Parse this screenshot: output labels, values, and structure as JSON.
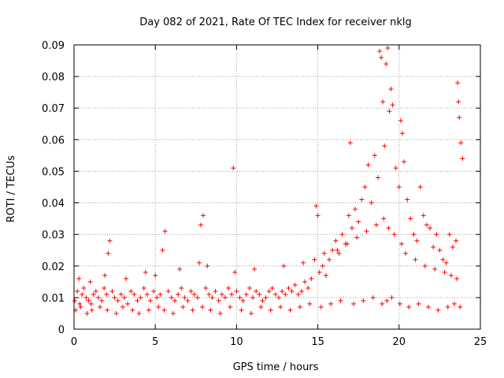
{
  "chart_data": {
    "type": "scatter",
    "title": "Day 082 of 2021, Rate Of TEC Index for receiver nklg",
    "xlabel": "GPS time / hours",
    "ylabel": "ROTI / TECUs",
    "xlim": [
      0,
      25
    ],
    "ylim": [
      0,
      0.09
    ],
    "x_ticks": [
      0,
      5,
      10,
      15,
      20,
      25
    ],
    "x_tick_labels": [
      "0",
      "5",
      "10",
      "15",
      "20",
      "25"
    ],
    "y_ticks": [
      0,
      0.01,
      0.02,
      0.03,
      0.04,
      0.05,
      0.06,
      0.07,
      0.08,
      0.09
    ],
    "y_tick_labels": [
      "0",
      "0.01",
      "0.02",
      "0.03",
      "0.04",
      "0.05",
      "0.06",
      "0.07",
      "0.08",
      "0.09"
    ],
    "grid": true,
    "marker": "plus",
    "series": [
      {
        "name": "ROTI",
        "color": "#ff0000",
        "x": [
          0.05,
          0.2,
          0.35,
          0.5,
          0.6,
          0.75,
          0.9,
          1.05,
          1.2,
          1.35,
          1.5,
          1.7,
          1.85,
          2.0,
          2.1,
          2.2,
          2.35,
          2.5,
          2.7,
          2.9,
          3.1,
          3.3,
          3.5,
          3.7,
          3.9,
          4.1,
          4.3,
          4.5,
          4.7,
          4.9,
          5.1,
          5.3,
          5.45,
          5.6,
          5.8,
          6.0,
          6.2,
          6.4,
          6.6,
          6.8,
          7.0,
          7.2,
          7.4,
          7.6,
          7.8,
          7.95,
          8.1,
          8.3,
          8.5,
          8.7,
          8.9,
          9.1,
          9.3,
          9.5,
          9.7,
          9.8,
          10.0,
          10.2,
          10.4,
          10.6,
          10.8,
          11.0,
          11.2,
          11.4,
          11.6,
          11.8,
          12.0,
          12.2,
          12.4,
          12.6,
          12.8,
          13.0,
          13.2,
          13.4,
          13.6,
          13.8,
          14.0,
          14.2,
          14.4,
          14.6,
          14.8,
          14.9,
          15.0,
          15.1,
          15.3,
          15.5,
          15.7,
          15.9,
          16.1,
          16.3,
          16.5,
          16.7,
          16.9,
          17.0,
          17.1,
          17.3,
          17.5,
          17.7,
          17.9,
          18.1,
          18.3,
          18.5,
          18.7,
          18.8,
          18.9,
          19.0,
          19.1,
          19.2,
          19.3,
          19.4,
          19.5,
          19.6,
          19.8,
          20.0,
          20.1,
          20.2,
          20.3,
          20.5,
          20.7,
          20.9,
          21.1,
          21.3,
          21.5,
          21.7,
          21.9,
          22.1,
          22.3,
          22.5,
          22.7,
          22.9,
          23.1,
          23.3,
          23.5,
          23.6,
          23.65,
          23.7,
          23.8,
          23.9,
          0.1,
          0.4,
          0.8,
          1.1,
          1.6,
          2.05,
          2.6,
          3.0,
          3.6,
          4.0,
          4.6,
          5.2,
          5.55,
          6.1,
          6.7,
          7.3,
          7.9,
          8.4,
          9.0,
          9.6,
          10.3,
          10.9,
          11.5,
          12.1,
          12.7,
          13.3,
          13.9,
          14.5,
          15.2,
          15.8,
          16.4,
          17.2,
          17.8,
          18.4,
          18.95,
          19.25,
          19.55,
          20.05,
          20.6,
          21.2,
          21.8,
          22.4,
          23.0,
          23.4,
          23.75,
          0.3,
          1.0,
          1.9,
          3.2,
          4.4,
          5.0,
          6.5,
          7.7,
          8.2,
          9.9,
          11.1,
          12.9,
          14.1,
          15.4,
          16.2,
          16.8,
          17.4,
          18.0,
          18.6,
          19.05,
          19.35,
          19.7,
          20.15,
          20.4,
          21.0,
          21.6,
          22.2,
          22.8,
          23.2,
          23.55
        ],
        "y": [
          0.009,
          0.012,
          0.008,
          0.011,
          0.013,
          0.01,
          0.009,
          0.008,
          0.011,
          0.012,
          0.01,
          0.009,
          0.013,
          0.011,
          0.024,
          0.028,
          0.012,
          0.01,
          0.009,
          0.011,
          0.01,
          0.008,
          0.012,
          0.011,
          0.009,
          0.01,
          0.013,
          0.011,
          0.009,
          0.012,
          0.01,
          0.011,
          0.025,
          0.031,
          0.012,
          0.01,
          0.009,
          0.011,
          0.013,
          0.01,
          0.009,
          0.012,
          0.011,
          0.01,
          0.033,
          0.036,
          0.013,
          0.011,
          0.01,
          0.012,
          0.009,
          0.011,
          0.01,
          0.013,
          0.011,
          0.051,
          0.012,
          0.01,
          0.009,
          0.011,
          0.013,
          0.01,
          0.012,
          0.011,
          0.009,
          0.01,
          0.012,
          0.013,
          0.011,
          0.01,
          0.012,
          0.011,
          0.013,
          0.012,
          0.014,
          0.011,
          0.012,
          0.015,
          0.013,
          0.016,
          0.022,
          0.039,
          0.036,
          0.018,
          0.02,
          0.017,
          0.022,
          0.025,
          0.028,
          0.024,
          0.03,
          0.027,
          0.036,
          0.059,
          0.032,
          0.038,
          0.034,
          0.041,
          0.045,
          0.052,
          0.04,
          0.055,
          0.048,
          0.088,
          0.086,
          0.072,
          0.058,
          0.084,
          0.089,
          0.069,
          0.076,
          0.071,
          0.051,
          0.045,
          0.066,
          0.062,
          0.053,
          0.041,
          0.035,
          0.03,
          0.028,
          0.045,
          0.036,
          0.033,
          0.032,
          0.026,
          0.03,
          0.025,
          0.022,
          0.021,
          0.03,
          0.026,
          0.028,
          0.078,
          0.072,
          0.067,
          0.059,
          0.054,
          0.006,
          0.007,
          0.005,
          0.006,
          0.007,
          0.006,
          0.005,
          0.007,
          0.006,
          0.005,
          0.006,
          0.007,
          0.006,
          0.005,
          0.007,
          0.006,
          0.007,
          0.006,
          0.005,
          0.007,
          0.006,
          0.005,
          0.007,
          0.006,
          0.007,
          0.006,
          0.007,
          0.008,
          0.007,
          0.008,
          0.009,
          0.008,
          0.009,
          0.01,
          0.008,
          0.009,
          0.01,
          0.008,
          0.007,
          0.008,
          0.007,
          0.006,
          0.007,
          0.008,
          0.007,
          0.016,
          0.015,
          0.017,
          0.016,
          0.018,
          0.017,
          0.019,
          0.021,
          0.02,
          0.018,
          0.019,
          0.02,
          0.021,
          0.024,
          0.025,
          0.027,
          0.029,
          0.031,
          0.033,
          0.035,
          0.032,
          0.03,
          0.027,
          0.024,
          0.022,
          0.02,
          0.019,
          0.018,
          0.017,
          0.016
        ]
      }
    ]
  }
}
